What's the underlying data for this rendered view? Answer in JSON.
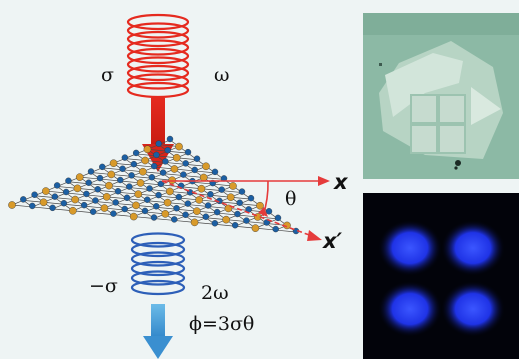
{
  "diagram": {
    "incident": {
      "polarization": "σ",
      "frequency": "ω"
    },
    "outgoing": {
      "polarization": "−σ",
      "frequency": "2ω"
    },
    "lab_axis": "x",
    "crystal_axis": "x′",
    "angle": "θ",
    "phase_relation": "ϕ=3σθ"
  },
  "colors": {
    "incident_beam": "#e52a1f",
    "outgoing_beam": "#2d5fb8",
    "outgoing_arrow": "#4aa0d8",
    "axis": "#e53b3b",
    "metal_atom": "#d89a2a",
    "chalcogen_atom": "#1b5fa3",
    "flake": "#c9ded2",
    "shg_lobes": "#1f36ff"
  },
  "panels": {
    "top_right": "optical-micrograph",
    "bottom_right": "shg-four-lobe-image"
  }
}
